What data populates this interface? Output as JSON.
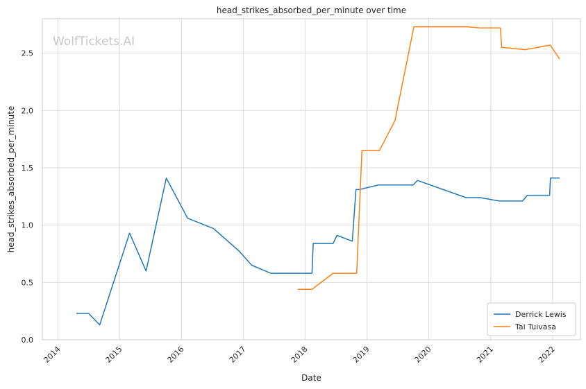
{
  "watermark": "WolfTickets.AI",
  "chart_data": {
    "type": "line",
    "title": "head_strikes_absorbed_per_minute over time",
    "xlabel": "Date",
    "ylabel": "head_strikes_absorbed_per_minute",
    "xlim": [
      "2013-10-01",
      "2022-06-15"
    ],
    "ylim": [
      0,
      2.8
    ],
    "x_ticks": [
      "2014",
      "2015",
      "2016",
      "2017",
      "2018",
      "2019",
      "2020",
      "2021",
      "2022"
    ],
    "y_ticks": [
      "0.0",
      "0.5",
      "1.0",
      "1.5",
      "2.0",
      "2.5"
    ],
    "y_tick_values": [
      0,
      0.5,
      1.0,
      1.5,
      2.0,
      2.5
    ],
    "grid": true,
    "legend_position": "bottom-right",
    "series": [
      {
        "name": "Derrick Lewis",
        "color": "#1f77b4",
        "points": [
          [
            "2014-04-20",
            0.23
          ],
          [
            "2014-07-01",
            0.23
          ],
          [
            "2014-09-05",
            0.13
          ],
          [
            "2015-02-28",
            0.93
          ],
          [
            "2015-06-06",
            0.6
          ],
          [
            "2015-10-03",
            1.41
          ],
          [
            "2016-02-06",
            1.06
          ],
          [
            "2016-07-08",
            0.97
          ],
          [
            "2016-12-09",
            0.77
          ],
          [
            "2017-02-19",
            0.65
          ],
          [
            "2017-06-11",
            0.58
          ],
          [
            "2018-02-10",
            0.58
          ],
          [
            "2018-02-17",
            0.84
          ],
          [
            "2018-06-15",
            0.84
          ],
          [
            "2018-07-07",
            0.91
          ],
          [
            "2018-10-06",
            0.86
          ],
          [
            "2018-10-28",
            1.31
          ],
          [
            "2018-11-17",
            1.31
          ],
          [
            "2019-03-09",
            1.35
          ],
          [
            "2019-10-01",
            1.35
          ],
          [
            "2019-10-26",
            1.39
          ],
          [
            "2020-08-08",
            1.24
          ],
          [
            "2020-10-31",
            1.24
          ],
          [
            "2021-02-20",
            1.21
          ],
          [
            "2021-07-08",
            1.21
          ],
          [
            "2021-08-05",
            1.26
          ],
          [
            "2021-12-15",
            1.26
          ],
          [
            "2021-12-20",
            1.41
          ],
          [
            "2022-02-12",
            1.41
          ]
        ]
      },
      {
        "name": "Tai Tuivasa",
        "color": "#ff7f0e",
        "points": [
          [
            "2017-11-19",
            0.44
          ],
          [
            "2018-02-10",
            0.44
          ],
          [
            "2018-06-15",
            0.58
          ],
          [
            "2018-11-01",
            0.58
          ],
          [
            "2018-12-02",
            1.65
          ],
          [
            "2019-03-15",
            1.65
          ],
          [
            "2019-06-15",
            1.91
          ],
          [
            "2019-10-05",
            2.73
          ],
          [
            "2020-08-15",
            2.73
          ],
          [
            "2020-10-31",
            2.72
          ],
          [
            "2021-02-27",
            2.72
          ],
          [
            "2021-03-07",
            2.55
          ],
          [
            "2021-07-24",
            2.53
          ],
          [
            "2021-12-18",
            2.57
          ],
          [
            "2022-02-12",
            2.45
          ]
        ]
      }
    ]
  }
}
